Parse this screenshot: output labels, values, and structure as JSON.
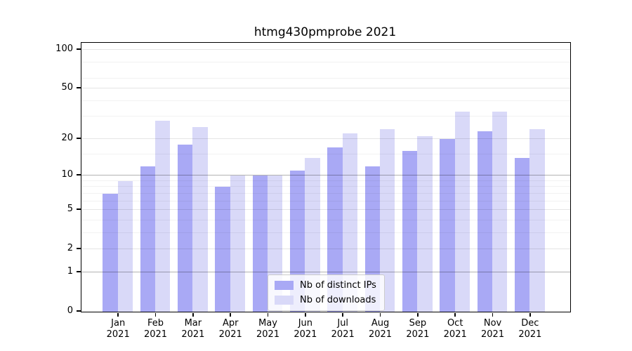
{
  "title": "htmg430pmprobe 2021",
  "colors": {
    "distinct_ips": "#a9a9f5",
    "downloads": "#d9d9f8",
    "grid_major": "#b3b3b3",
    "grid_labeled": "#e6e6e6",
    "grid_minor": "#f2f2f2",
    "axis": "#000000"
  },
  "chart_data": {
    "type": "bar",
    "title": "htmg430pmprobe 2021",
    "categories": [
      "Jan 2021",
      "Feb 2021",
      "Mar 2021",
      "Apr 2021",
      "May 2021",
      "Jun 2021",
      "Jul 2021",
      "Aug 2021",
      "Sep 2021",
      "Oct 2021",
      "Nov 2021",
      "Dec 2021"
    ],
    "x_tick_months": [
      "Jan",
      "Feb",
      "Mar",
      "Apr",
      "May",
      "Jun",
      "Jul",
      "Aug",
      "Sep",
      "Oct",
      "Nov",
      "Dec"
    ],
    "x_tick_year": "2021",
    "series": [
      {
        "name": "Nb of distinct IPs",
        "color": "#a9a9f5",
        "values": [
          7,
          12,
          18,
          8,
          10,
          11,
          17,
          12,
          16,
          20,
          23,
          14
        ]
      },
      {
        "name": "Nb of downloads",
        "color": "#d9d9f8",
        "values": [
          9,
          28,
          25,
          10,
          10,
          14,
          22,
          24,
          21,
          33,
          33,
          24
        ]
      }
    ],
    "xlabel": "",
    "ylabel": "",
    "yscale": "log1p",
    "ylim": [
      0,
      113
    ],
    "y_ticks": [
      0,
      1,
      2,
      5,
      10,
      20,
      50,
      100
    ],
    "y_major_gridlines": [
      1,
      10
    ],
    "y_labeled_gridlines": [
      2,
      5,
      20,
      50,
      100
    ],
    "y_minor_gridlines": [
      3,
      4,
      6,
      7,
      8,
      9,
      15,
      30,
      40,
      60,
      80
    ],
    "grid": true,
    "legend_position": "lower center"
  }
}
